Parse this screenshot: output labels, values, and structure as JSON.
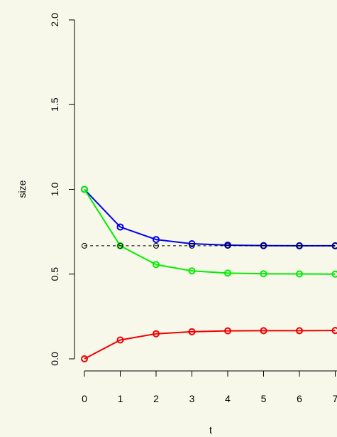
{
  "chart_data": {
    "type": "line",
    "title": "",
    "xlabel": "t",
    "ylabel": "size",
    "xlim": [
      0,
      7
    ],
    "ylim": [
      0,
      2
    ],
    "x_ticks": [
      0,
      1,
      2,
      3,
      4,
      5,
      6,
      7
    ],
    "y_ticks": [
      0.0,
      0.5,
      1.0,
      1.5,
      2.0
    ],
    "y_tick_labels": [
      "0.0",
      "0.5",
      "1.0",
      "1.5",
      "2.0"
    ],
    "x": [
      0,
      1,
      2,
      3,
      4,
      5,
      6,
      7
    ],
    "series": [
      {
        "color": "#0000ee",
        "style": "solid",
        "values": [
          1.0,
          0.778,
          0.704,
          0.679,
          0.671,
          0.668,
          0.667,
          0.667
        ]
      },
      {
        "color": "#00ee00",
        "style": "solid",
        "values": [
          1.0,
          0.667,
          0.556,
          0.519,
          0.506,
          0.502,
          0.501,
          0.5
        ]
      },
      {
        "color": "#ee0000",
        "style": "solid",
        "values": [
          0.0,
          0.111,
          0.148,
          0.16,
          0.165,
          0.166,
          0.166,
          0.167
        ]
      },
      {
        "color": "#000000",
        "style": "dashed",
        "values": [
          0.667,
          0.667,
          0.667,
          0.667,
          0.667,
          0.667,
          0.667,
          0.667
        ]
      }
    ],
    "grid": false,
    "legend": "none"
  }
}
